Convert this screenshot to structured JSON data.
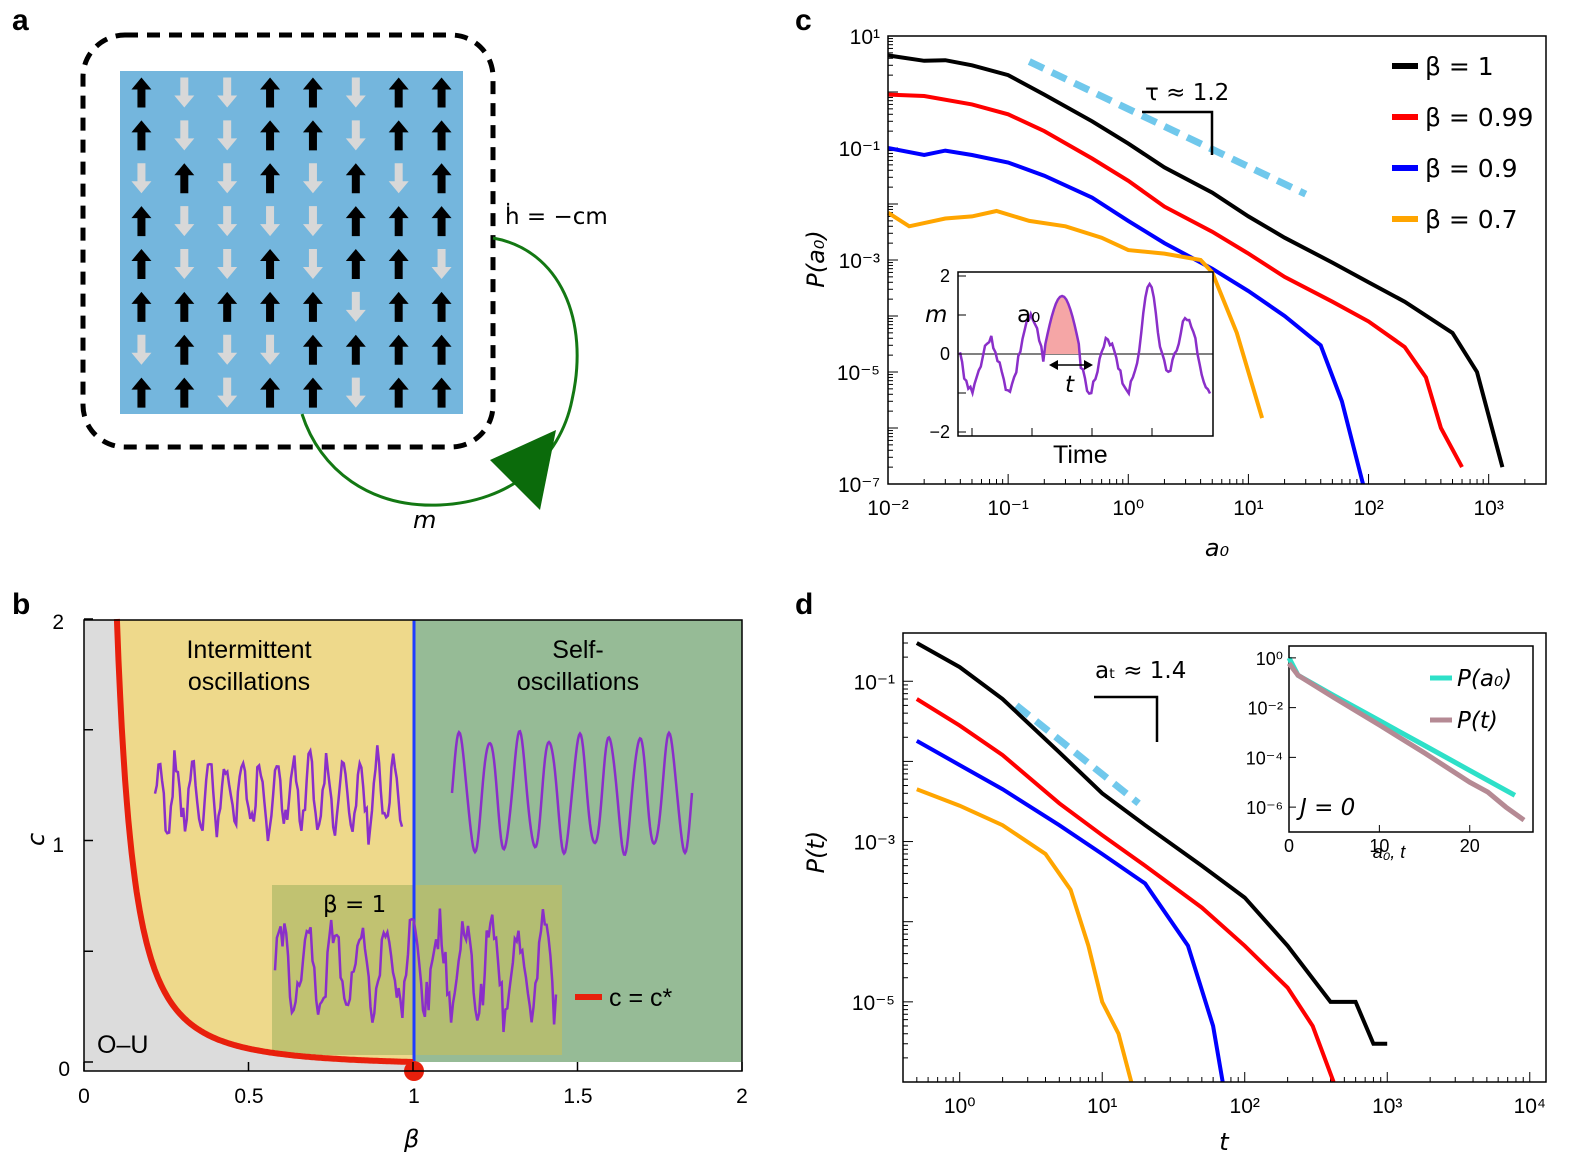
{
  "panels": {
    "a": {
      "letter": "a",
      "feedback_label": "ḣ = −cm",
      "m_label": "m",
      "spins": [
        [
          1,
          0,
          0,
          1,
          1,
          0,
          1,
          1
        ],
        [
          1,
          0,
          0,
          1,
          1,
          0,
          1,
          1
        ],
        [
          0,
          1,
          0,
          1,
          0,
          1,
          0,
          1
        ],
        [
          1,
          0,
          0,
          0,
          0,
          1,
          1,
          1
        ],
        [
          1,
          0,
          0,
          1,
          0,
          1,
          1,
          0
        ],
        [
          1,
          1,
          1,
          1,
          1,
          0,
          1,
          1
        ],
        [
          0,
          1,
          0,
          0,
          1,
          1,
          1,
          1
        ],
        [
          1,
          1,
          0,
          1,
          1,
          0,
          1,
          1
        ]
      ],
      "colors": {
        "grid": "#74b6dd",
        "up": "#000000",
        "down": "#d8d8d8",
        "arrow": "#137813"
      }
    },
    "b": {
      "letter": "b",
      "xlabel": "β",
      "ylabel": "c",
      "xticks": [
        "0",
        "0.5",
        "1",
        "1.5",
        "2"
      ],
      "yticks": [
        "0",
        "1",
        "2"
      ],
      "regions": {
        "ou": "O–U",
        "intermittent": "Intermittent oscillations",
        "self": "Self-oscillations"
      },
      "region_lines": {
        "intermittent": [
          "Intermittent",
          "oscillations"
        ],
        "self": [
          "Self-",
          "oscillations"
        ]
      },
      "inset_label": "β = 1",
      "legend": "c = c*",
      "colors": {
        "ou": "#dcdcdc",
        "intermittent": "#eed98b",
        "self": "#96bb96",
        "inset": "#b8bd6c",
        "curve": "#e8200c",
        "trace": "#8a2fc9",
        "divider": "#1f3cff"
      }
    },
    "c": {
      "letter": "c",
      "xlabel": "a₀",
      "ylabel": "P(a₀)",
      "xticks": [
        "10⁻²",
        "10⁻¹",
        "10⁰",
        "10¹",
        "10²",
        "10³"
      ],
      "yticks": [
        "10¹",
        "10⁻¹",
        "10⁻³",
        "10⁻⁵",
        "10⁻⁷"
      ],
      "slope_label": "τ ≈ 1.2",
      "inset": {
        "ylabel": "m",
        "xlabel": "Time",
        "yticks": [
          "2",
          "0",
          "−2"
        ],
        "a0_label": "a₀",
        "t_label": "t"
      }
    },
    "d": {
      "letter": "d",
      "xlabel": "t",
      "ylabel": "P(t)",
      "xticks": [
        "10⁰",
        "10¹",
        "10²",
        "10³",
        "10⁴"
      ],
      "yticks": [
        "10⁻¹",
        "10⁻³",
        "10⁻⁵"
      ],
      "slope_label": "aₜ ≈ 1.4",
      "inset": {
        "xticks": [
          "0",
          "10",
          "20"
        ],
        "yticks": [
          "10⁰",
          "10⁻²",
          "10⁻⁴",
          "10⁻⁶"
        ],
        "xlabel": "a₀, t",
        "j_label": "J = 0",
        "legend": [
          "P(a₀)",
          "P(t)"
        ],
        "colors": [
          "#2ee0c8",
          "#b58a94"
        ]
      }
    }
  },
  "chart_data": [
    {
      "type": "line",
      "panel": "c",
      "xscale": "log",
      "yscale": "log",
      "xlim": [
        0.01,
        3000
      ],
      "ylim": [
        1e-07,
        10
      ],
      "xlabel": "a₀",
      "ylabel": "P(a₀)",
      "legend_position": "top-right",
      "series": [
        {
          "name": "β = 1",
          "color": "#000000",
          "x": [
            0.01,
            0.02,
            0.03,
            0.05,
            0.1,
            0.2,
            0.5,
            1,
            2,
            5,
            10,
            20,
            50,
            100,
            200,
            500,
            800,
            1300
          ],
          "y": [
            4.5,
            3.6,
            3.7,
            3.0,
            2.0,
            0.9,
            0.3,
            0.12,
            0.045,
            0.016,
            0.006,
            0.0025,
            0.0009,
            0.0004,
            0.00018,
            5e-05,
            1e-05,
            2e-07
          ]
        },
        {
          "name": "β = 0.99",
          "color": "#ff0000",
          "x": [
            0.01,
            0.02,
            0.05,
            0.1,
            0.2,
            0.5,
            1,
            2,
            5,
            10,
            20,
            50,
            100,
            200,
            300,
            400,
            600
          ],
          "y": [
            0.9,
            0.85,
            0.6,
            0.4,
            0.2,
            0.065,
            0.026,
            0.009,
            0.0032,
            0.0013,
            0.0005,
            0.00018,
            8e-05,
            2.8e-05,
            8e-06,
            1e-06,
            2e-07
          ]
        },
        {
          "name": "β = 0.9",
          "color": "#0000ff",
          "x": [
            0.01,
            0.02,
            0.03,
            0.05,
            0.1,
            0.2,
            0.5,
            1,
            2,
            5,
            10,
            20,
            40,
            60,
            90
          ],
          "y": [
            0.1,
            0.075,
            0.09,
            0.075,
            0.055,
            0.032,
            0.013,
            0.005,
            0.002,
            0.0007,
            0.00028,
            0.0001,
            3e-05,
            3e-06,
            1e-07
          ]
        },
        {
          "name": "β = 0.7",
          "color": "#ffa500",
          "x": [
            0.01,
            0.015,
            0.03,
            0.05,
            0.08,
            0.15,
            0.3,
            0.6,
            1,
            2,
            4,
            5,
            8,
            13
          ],
          "y": [
            0.007,
            0.004,
            0.0055,
            0.006,
            0.0075,
            0.005,
            0.004,
            0.0025,
            0.0015,
            0.0013,
            0.001,
            0.0006,
            5e-05,
            1.5e-06
          ]
        }
      ]
    },
    {
      "type": "line",
      "panel": "d",
      "xscale": "log",
      "yscale": "log",
      "xlim": [
        0.4,
        13000
      ],
      "ylim": [
        1e-06,
        0.4
      ],
      "xlabel": "t",
      "ylabel": "P(t)",
      "series": [
        {
          "name": "β = 1",
          "color": "#000000",
          "x": [
            0.5,
            1,
            2,
            5,
            10,
            20,
            50,
            100,
            200,
            400,
            600,
            800,
            1000
          ],
          "y": [
            0.3,
            0.15,
            0.06,
            0.013,
            0.004,
            0.0016,
            0.0005,
            0.0002,
            5e-05,
            1e-05,
            1e-05,
            3e-06,
            3e-06
          ]
        },
        {
          "name": "β = 0.99",
          "color": "#ff0000",
          "x": [
            0.5,
            1,
            2,
            5,
            10,
            20,
            50,
            100,
            200,
            300,
            420
          ],
          "y": [
            0.06,
            0.028,
            0.012,
            0.003,
            0.0012,
            0.0005,
            0.00015,
            5e-05,
            1.5e-05,
            5e-06,
            1e-06
          ]
        },
        {
          "name": "β = 0.9",
          "color": "#0000ff",
          "x": [
            0.5,
            1,
            2,
            5,
            10,
            20,
            40,
            60,
            70
          ],
          "y": [
            0.018,
            0.009,
            0.0045,
            0.0016,
            0.0007,
            0.0003,
            5e-05,
            5e-06,
            1e-06
          ]
        },
        {
          "name": "β = 0.7",
          "color": "#ffa500",
          "x": [
            0.5,
            1,
            2,
            4,
            6,
            8,
            10,
            13,
            16
          ],
          "y": [
            0.0045,
            0.0028,
            0.0016,
            0.0007,
            0.00025,
            5e-05,
            1e-05,
            4e-06,
            1e-06
          ]
        }
      ]
    },
    {
      "type": "line",
      "panel": "d-inset",
      "yscale": "log",
      "xlim": [
        0,
        27
      ],
      "ylim": [
        1e-07,
        3
      ],
      "xlabel": "a₀, t",
      "series": [
        {
          "name": "P(a₀)",
          "color": "#2ee0c8",
          "x": [
            0,
            1,
            5,
            10,
            15,
            20,
            25
          ],
          "y": [
            1.0,
            0.2,
            0.03,
            0.003,
            0.0003,
            3e-05,
            3e-06
          ]
        },
        {
          "name": "P(t)",
          "color": "#b58a94",
          "x": [
            0,
            1,
            5,
            10,
            15,
            20,
            22,
            24,
            26
          ],
          "y": [
            0.6,
            0.2,
            0.025,
            0.002,
            0.00015,
            1e-05,
            4e-06,
            1e-06,
            3e-07
          ]
        }
      ]
    }
  ]
}
